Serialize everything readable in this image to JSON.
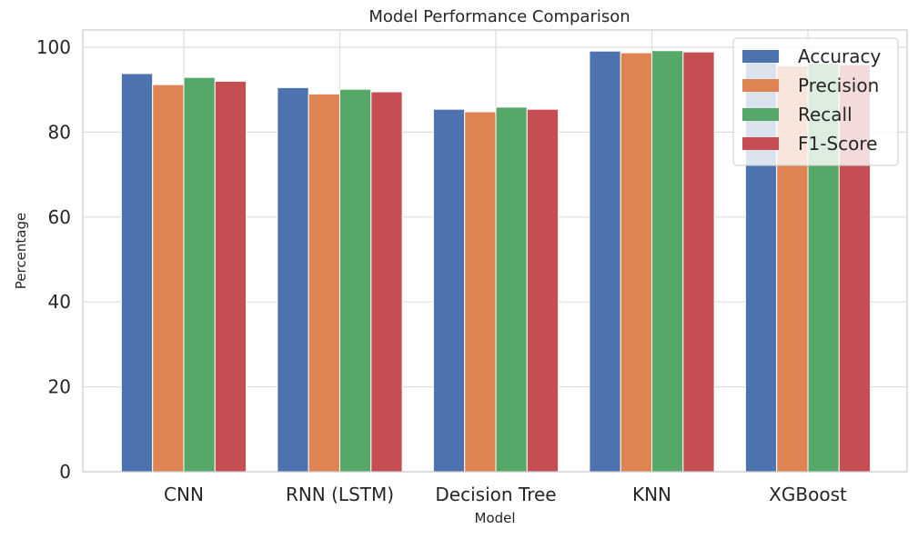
{
  "chart_data": {
    "type": "bar",
    "title": "Model Performance Comparison",
    "xlabel": "Model",
    "ylabel": "Percentage",
    "categories": [
      "CNN",
      "RNN (LSTM)",
      "Decision Tree",
      "KNN",
      "XGBoost"
    ],
    "series": [
      {
        "name": "Accuracy",
        "color": "#4c72b0",
        "values": [
          93.8,
          90.5,
          85.4,
          99.1,
          96.4
        ]
      },
      {
        "name": "Precision",
        "color": "#dd8452",
        "values": [
          91.2,
          89.0,
          84.8,
          98.7,
          95.6
        ]
      },
      {
        "name": "Recall",
        "color": "#55a868",
        "values": [
          92.9,
          90.1,
          85.9,
          99.2,
          96.2
        ]
      },
      {
        "name": "F1-Score",
        "color": "#c44e52",
        "values": [
          92.0,
          89.5,
          85.4,
          98.9,
          95.9
        ]
      }
    ],
    "yticks": [
      0,
      20,
      40,
      60,
      80,
      100
    ],
    "ylim": [
      0,
      105
    ],
    "grid": true,
    "legend_position": "top-right"
  }
}
